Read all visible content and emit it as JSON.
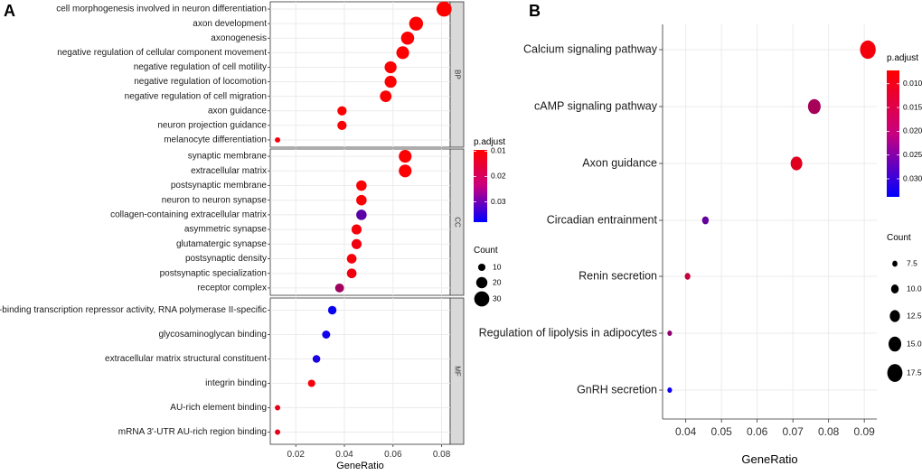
{
  "chart_data": [
    {
      "panel_label": "A",
      "type": "scatter",
      "xlabel": "GeneRatio",
      "xlim": [
        0.0095,
        0.0835
      ],
      "xticks": [
        0.02,
        0.04,
        0.06,
        0.08
      ],
      "xtick_labels": [
        "0.02",
        "0.04",
        "0.06",
        "0.08"
      ],
      "facets": [
        {
          "name": "BP",
          "points": [
            {
              "term": "cell morphogenesis involved in neuron differentiation",
              "x": 0.081,
              "count": 30,
              "p": 0.0095
            },
            {
              "term": "axon development",
              "x": 0.0695,
              "count": 27,
              "p": 0.0097
            },
            {
              "term": "axonogenesis",
              "x": 0.066,
              "count": 25,
              "p": 0.0097
            },
            {
              "term": "negative regulation of cellular component movement",
              "x": 0.064,
              "count": 24,
              "p": 0.0097
            },
            {
              "term": "negative regulation of cell motility",
              "x": 0.059,
              "count": 22,
              "p": 0.0097
            },
            {
              "term": "negative regulation of locomotion",
              "x": 0.059,
              "count": 22,
              "p": 0.0097
            },
            {
              "term": "negative regulation of cell migration",
              "x": 0.057,
              "count": 21,
              "p": 0.0097
            },
            {
              "term": "axon guidance",
              "x": 0.039,
              "count": 15,
              "p": 0.0098
            },
            {
              "term": "neuron projection guidance",
              "x": 0.039,
              "count": 15,
              "p": 0.0098
            },
            {
              "term": "melanocyte differentiation",
              "x": 0.0125,
              "count": 5,
              "p": 0.0105
            }
          ]
        },
        {
          "name": "CC",
          "points": [
            {
              "term": "synaptic membrane",
              "x": 0.065,
              "count": 24,
              "p": 0.0097
            },
            {
              "term": "extracellular matrix",
              "x": 0.065,
              "count": 24,
              "p": 0.0097
            },
            {
              "term": "postsynaptic membrane",
              "x": 0.047,
              "count": 18,
              "p": 0.0098
            },
            {
              "term": "neuron to neuron synapse",
              "x": 0.047,
              "count": 18,
              "p": 0.0099
            },
            {
              "term": "collagen-containing extracellular matrix",
              "x": 0.047,
              "count": 18,
              "p": 0.028
            },
            {
              "term": "asymmetric synapse",
              "x": 0.045,
              "count": 17,
              "p": 0.0105
            },
            {
              "term": "glutamatergic synapse",
              "x": 0.045,
              "count": 17,
              "p": 0.0112
            },
            {
              "term": "postsynaptic density",
              "x": 0.043,
              "count": 16,
              "p": 0.0105
            },
            {
              "term": "postsynaptic specialization",
              "x": 0.043,
              "count": 16,
              "p": 0.0112
            },
            {
              "term": "receptor complex",
              "x": 0.038,
              "count": 14,
              "p": 0.02
            }
          ]
        },
        {
          "name": "MF",
          "points": [
            {
              "term": "DNA-binding transcription repressor activity, RNA polymerase II-specific",
              "x": 0.035,
              "count": 13,
              "p": 0.037
            },
            {
              "term": "glycosaminoglycan binding",
              "x": 0.0325,
              "count": 12,
              "p": 0.036
            },
            {
              "term": "extracellular matrix structural constituent",
              "x": 0.0285,
              "count": 11,
              "p": 0.035
            },
            {
              "term": "integrin binding",
              "x": 0.0265,
              "count": 10,
              "p": 0.0105
            },
            {
              "term": "AU-rich element binding",
              "x": 0.0125,
              "count": 5,
              "p": 0.0125
            },
            {
              "term": "mRNA 3'-UTR AU-rich region binding",
              "x": 0.0125,
              "count": 5,
              "p": 0.0125
            }
          ]
        }
      ],
      "legend_color": {
        "title": "p.adjust",
        "min": 0.0095,
        "max": 0.038,
        "ticks": [
          0.01,
          0.02,
          0.03
        ],
        "tick_labels": [
          "0.01",
          "0.02",
          "0.03"
        ],
        "low_color": "#ff0000",
        "high_color": "#0000ff"
      },
      "legend_size": {
        "title": "Count",
        "values": [
          10,
          20,
          30
        ],
        "labels": [
          "10",
          "20",
          "30"
        ]
      }
    },
    {
      "panel_label": "B",
      "type": "scatter",
      "xlabel": "GeneRatio",
      "xlim": [
        0.0335,
        0.0935
      ],
      "xticks": [
        0.04,
        0.05,
        0.06,
        0.07,
        0.08,
        0.09
      ],
      "xtick_labels": [
        "0.04",
        "0.05",
        "0.06",
        "0.07",
        "0.08",
        "0.09"
      ],
      "points": [
        {
          "term": "Calcium signaling pathway",
          "x": 0.091,
          "count": 18,
          "p": 0.0085
        },
        {
          "term": "cAMP signaling pathway",
          "x": 0.076,
          "count": 15,
          "p": 0.0165
        },
        {
          "term": "Axon guidance",
          "x": 0.071,
          "count": 14,
          "p": 0.0105
        },
        {
          "term": "Circadian entrainment",
          "x": 0.0455,
          "count": 9,
          "p": 0.0235
        },
        {
          "term": "Renin secretion",
          "x": 0.0405,
          "count": 8,
          "p": 0.0135
        },
        {
          "term": "Regulation of lipolysis in adipocytes",
          "x": 0.0355,
          "count": 7,
          "p": 0.019
        },
        {
          "term": "GnRH secretion",
          "x": 0.0355,
          "count": 7,
          "p": 0.0325
        }
      ],
      "legend_color": {
        "title": "p.adjust",
        "min": 0.0072,
        "max": 0.0338,
        "ticks": [
          0.01,
          0.015,
          0.02,
          0.025,
          0.03
        ],
        "tick_labels": [
          "0.010",
          "0.015",
          "0.020",
          "0.025",
          "0.030"
        ],
        "low_color": "#ff0000",
        "high_color": "#0000ff"
      },
      "legend_size": {
        "title": "Count",
        "values": [
          7.5,
          10,
          12.5,
          15,
          17.5
        ],
        "labels": [
          "7.5",
          "10.0",
          "12.5",
          "15.0",
          "17.5"
        ]
      }
    }
  ]
}
